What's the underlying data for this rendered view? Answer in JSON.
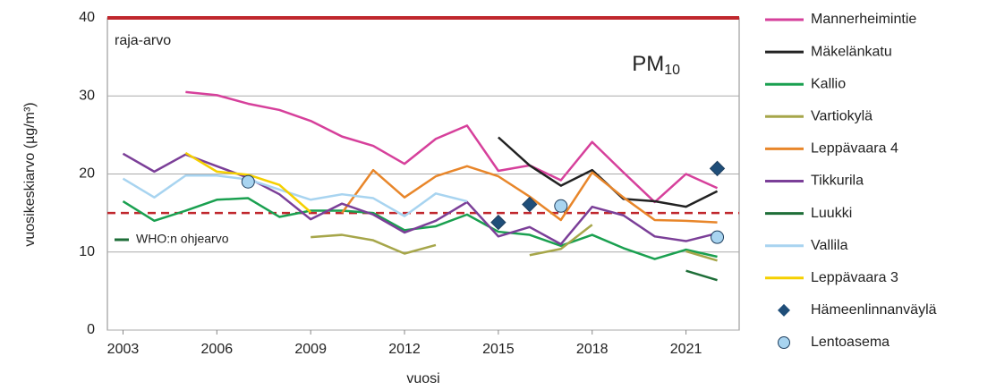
{
  "chart_data": {
    "type": "line",
    "title": "PM",
    "title_subscript": "10",
    "x_label": "vuosi",
    "y_label": "vuosikeskiarvo (µg/m³)",
    "x": [
      2003,
      2004,
      2005,
      2006,
      2007,
      2008,
      2009,
      2010,
      2011,
      2012,
      2013,
      2014,
      2015,
      2016,
      2017,
      2018,
      2019,
      2020,
      2021,
      2022
    ],
    "xlim": [
      2002.5,
      2022.7
    ],
    "xticks": [
      2003,
      2006,
      2009,
      2012,
      2015,
      2018,
      2021
    ],
    "ylim": [
      0,
      40
    ],
    "yticks": [
      0,
      10,
      20,
      30,
      40
    ],
    "grid": true,
    "limit_line": {
      "value": 40,
      "label": "raja-arvo",
      "color": "#c0272d"
    },
    "guide_line": {
      "value": 15,
      "label": "WHO:n ohjearvo",
      "color": "#c0272d"
    },
    "series": [
      {
        "name": "Mannerheimintie",
        "color": "#d6409b",
        "values": [
          null,
          null,
          30.5,
          30.1,
          29,
          28.2,
          26.8,
          24.8,
          23.6,
          21.3,
          24.5,
          26.2,
          20.4,
          21.1,
          19.2,
          24.1,
          20.2,
          16.4,
          20,
          18.2
        ]
      },
      {
        "name": "Mäkelänkatu",
        "color": "#222222",
        "values": [
          null,
          null,
          null,
          null,
          null,
          null,
          null,
          null,
          null,
          null,
          null,
          null,
          24.7,
          21.1,
          18.5,
          20.5,
          16.8,
          16.5,
          15.8,
          17.8
        ]
      },
      {
        "name": "Kallio",
        "color": "#1aa050",
        "values": [
          16.5,
          14,
          15.3,
          16.7,
          16.9,
          14.5,
          15.3,
          15.3,
          15,
          12.8,
          13.3,
          14.8,
          12.6,
          12.2,
          10.8,
          12.2,
          10.5,
          9.1,
          10.3,
          9.4
        ]
      },
      {
        "name": "Vartiokylä",
        "color": "#a6a64a",
        "values": [
          null,
          null,
          null,
          null,
          null,
          null,
          11.9,
          12.2,
          11.5,
          9.8,
          10.9,
          null,
          null,
          9.6,
          10.4,
          13.5,
          null,
          null,
          10.1,
          8.9
        ]
      },
      {
        "name": "Leppävaara 4",
        "color": "#e8862a",
        "values": [
          null,
          null,
          null,
          null,
          null,
          null,
          null,
          15,
          20.5,
          17,
          19.7,
          21,
          19.7,
          17.1,
          14.1,
          20.2,
          17,
          14.1,
          14,
          13.8
        ]
      },
      {
        "name": "Tikkurila",
        "color": "#7b3f98",
        "values": [
          22.6,
          20.3,
          22.5,
          21,
          19.5,
          17.4,
          14.2,
          16.2,
          14.8,
          12.5,
          14,
          16.4,
          12,
          13.2,
          11,
          15.8,
          14.7,
          12,
          11.4,
          12.4
        ]
      },
      {
        "name": "Luukki",
        "color": "#1e6e38",
        "values": [
          null,
          null,
          null,
          null,
          null,
          null,
          null,
          null,
          null,
          null,
          null,
          null,
          null,
          null,
          null,
          null,
          null,
          null,
          7.6,
          6.4
        ]
      },
      {
        "name": "Vallila",
        "color": "#a8d4f0",
        "values": [
          19.4,
          17,
          19.8,
          19.8,
          19.3,
          18,
          16.7,
          17.4,
          16.9,
          14.6,
          17.5,
          16.5,
          null,
          null,
          null,
          null,
          null,
          null,
          null,
          null
        ]
      },
      {
        "name": "Leppävaara  3",
        "color": "#f5d000",
        "values": [
          null,
          null,
          22.7,
          20.3,
          19.9,
          18.6,
          15.1,
          null,
          null,
          null,
          null,
          null,
          null,
          null,
          null,
          null,
          null,
          null,
          null,
          null
        ]
      },
      {
        "name": "Hämeenlinnanväylä",
        "color": "#1f4e79",
        "marker": "diamond",
        "values": [
          null,
          null,
          null,
          null,
          null,
          null,
          null,
          null,
          null,
          null,
          null,
          null,
          13.8,
          16.1,
          null,
          null,
          null,
          null,
          null,
          20.7
        ]
      },
      {
        "name": "Lentoasema",
        "color": "#a8d4f0",
        "marker": "circle",
        "values": [
          null,
          null,
          null,
          null,
          19,
          null,
          null,
          null,
          null,
          null,
          null,
          null,
          null,
          null,
          15.9,
          null,
          null,
          null,
          null,
          11.9
        ]
      }
    ]
  }
}
